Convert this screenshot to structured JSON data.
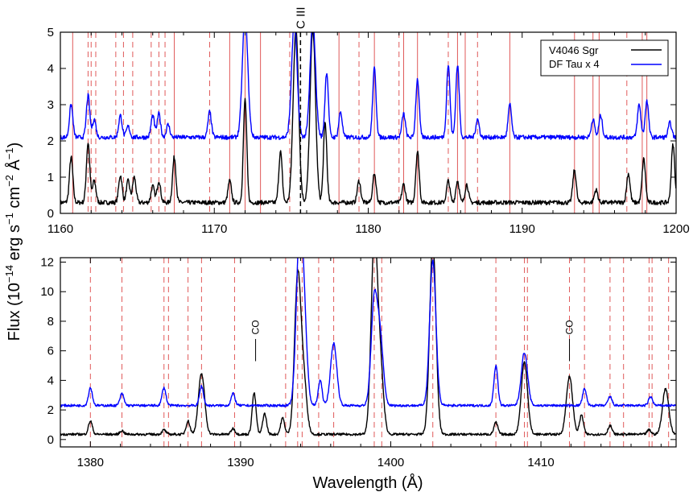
{
  "colors": {
    "black_series": "#000000",
    "blue_series": "#0000ff",
    "reference_lines": "#e05a5a"
  },
  "chart_data": [
    {
      "type": "line",
      "panel": "top",
      "xlim": [
        1160,
        1200
      ],
      "ylim": [
        0,
        5
      ],
      "xticks": [
        1160,
        1170,
        1180,
        1190,
        1200
      ],
      "yticks": [
        0,
        1,
        2,
        3,
        4,
        5
      ],
      "xtick_labels": [
        "1160",
        "1170",
        "1180",
        "1190",
        "1200"
      ],
      "ytick_labels": [
        "0",
        "1",
        "2",
        "3",
        "4",
        "5"
      ],
      "legend_position": "top-right",
      "series": [
        {
          "name": "V4046 Sgr",
          "color": "#000000",
          "baseline": 0.3,
          "peaks": [
            [
              1160.7,
              1.25
            ],
            [
              1161.8,
              1.65
            ],
            [
              1162.2,
              0.6
            ],
            [
              1163.9,
              0.75
            ],
            [
              1164.4,
              0.6
            ],
            [
              1164.8,
              0.7
            ],
            [
              1166.0,
              0.45
            ],
            [
              1166.4,
              0.6
            ],
            [
              1167.4,
              1.25
            ],
            [
              1171.0,
              0.6
            ],
            [
              1172.0,
              2.85
            ],
            [
              1174.3,
              1.4
            ],
            [
              1175.3,
              4.8
            ],
            [
              1176.4,
              4.8
            ],
            [
              1177.2,
              2.2
            ],
            [
              1179.4,
              0.6
            ],
            [
              1180.4,
              0.8
            ],
            [
              1182.3,
              0.5
            ],
            [
              1183.2,
              1.4
            ],
            [
              1185.2,
              0.6
            ],
            [
              1185.8,
              0.6
            ],
            [
              1186.4,
              0.5
            ],
            [
              1193.4,
              0.9
            ],
            [
              1194.8,
              0.35
            ],
            [
              1196.9,
              0.8
            ],
            [
              1197.9,
              1.2
            ],
            [
              1199.8,
              1.6
            ]
          ]
        },
        {
          "name": "DF Tau x 4",
          "color": "#0000ff",
          "baseline": 2.1,
          "peaks": [
            [
              1160.7,
              0.9
            ],
            [
              1161.8,
              1.15
            ],
            [
              1162.2,
              0.5
            ],
            [
              1163.9,
              0.6
            ],
            [
              1164.4,
              0.3
            ],
            [
              1166.0,
              0.6
            ],
            [
              1166.4,
              0.65
            ],
            [
              1167.0,
              0.35
            ],
            [
              1169.7,
              0.7
            ],
            [
              1172.0,
              3.4
            ],
            [
              1175.2,
              3.2
            ],
            [
              1176.4,
              3.2
            ],
            [
              1177.3,
              1.8
            ],
            [
              1178.2,
              0.7
            ],
            [
              1180.4,
              1.9
            ],
            [
              1182.3,
              0.65
            ],
            [
              1183.2,
              1.6
            ],
            [
              1185.2,
              2.0
            ],
            [
              1185.8,
              2.0
            ],
            [
              1187.1,
              0.5
            ],
            [
              1189.2,
              0.9
            ],
            [
              1194.6,
              0.5
            ],
            [
              1195.1,
              0.6
            ],
            [
              1197.6,
              0.9
            ],
            [
              1198.1,
              1.0
            ],
            [
              1199.6,
              0.4
            ]
          ]
        }
      ],
      "reference_lines_solid": [
        1160.8,
        1167.4,
        1171.0,
        1172.0,
        1173.0,
        1178.1,
        1180.4,
        1182.3,
        1183.2,
        1185.8,
        1186.3,
        1189.2,
        1193.4,
        1194.6,
        1195.0,
        1197.8,
        1198.1
      ],
      "reference_lines_dashed": [
        1161.8,
        1162.0,
        1162.3,
        1163.6,
        1164.1,
        1164.7,
        1165.9,
        1166.4,
        1166.8,
        1169.7,
        1174.9,
        1179.4,
        1182.0,
        1185.2,
        1187.1,
        1196.8
      ],
      "annotation": {
        "label": "C III",
        "x": 1175.6
      }
    },
    {
      "type": "line",
      "panel": "bottom",
      "xlim": [
        1378,
        1419
      ],
      "ylim": [
        -0.5,
        12.3
      ],
      "xticks": [
        1380,
        1390,
        1400,
        1410
      ],
      "yticks": [
        0,
        2,
        4,
        6,
        8,
        10,
        12
      ],
      "xtick_labels": [
        "1380",
        "1390",
        "1400",
        "1410"
      ],
      "ytick_labels": [
        "0",
        "2",
        "4",
        "6",
        "8",
        "10",
        "12"
      ],
      "xlabel": "Wavelength (Å)",
      "series": [
        {
          "name": "V4046 Sgr",
          "color": "#000000",
          "baseline": 0.35,
          "peaks": [
            [
              1380.0,
              0.9
            ],
            [
              1382.1,
              0.25
            ],
            [
              1384.9,
              0.3
            ],
            [
              1386.5,
              0.9
            ],
            [
              1387.4,
              4.1
            ],
            [
              1389.5,
              0.4
            ],
            [
              1390.9,
              2.8
            ],
            [
              1391.6,
              1.4
            ],
            [
              1392.8,
              1.1
            ],
            [
              1393.8,
              10.5
            ],
            [
              1394.2,
              3.5
            ],
            [
              1398.9,
              13.0
            ],
            [
              1399.3,
              4.5
            ],
            [
              1402.8,
              13.0
            ],
            [
              1407.0,
              0.8
            ],
            [
              1408.9,
              4.9
            ],
            [
              1411.9,
              3.9
            ],
            [
              1412.7,
              1.3
            ],
            [
              1414.6,
              0.6
            ],
            [
              1417.2,
              0.3
            ],
            [
              1418.3,
              3.1
            ]
          ]
        },
        {
          "name": "DF Tau x 4",
          "color": "#0000ff",
          "baseline": 2.3,
          "peaks": [
            [
              1380.0,
              1.2
            ],
            [
              1382.1,
              0.8
            ],
            [
              1384.9,
              1.2
            ],
            [
              1387.4,
              1.3
            ],
            [
              1389.5,
              0.8
            ],
            [
              1393.9,
              10.0
            ],
            [
              1394.2,
              6.0
            ],
            [
              1395.3,
              1.7
            ],
            [
              1396.2,
              4.2
            ],
            [
              1398.9,
              7.0
            ],
            [
              1399.3,
              4.3
            ],
            [
              1402.8,
              9.8
            ],
            [
              1407.0,
              2.7
            ],
            [
              1408.9,
              3.6
            ],
            [
              1412.9,
              1.1
            ],
            [
              1414.6,
              0.6
            ],
            [
              1417.3,
              0.6
            ]
          ]
        }
      ],
      "reference_lines_dashed": [
        1380.0,
        1382.1,
        1384.9,
        1385.2,
        1386.5,
        1387.4,
        1389.6,
        1393.0,
        1393.8,
        1394.1,
        1395.2,
        1396.2,
        1398.9,
        1399.4,
        1402.8,
        1407.0,
        1408.9,
        1409.1,
        1411.9,
        1412.9,
        1414.6,
        1415.5,
        1417.2,
        1417.4,
        1418.5
      ],
      "annotations": [
        {
          "label": "CO",
          "x": 1391.0
        },
        {
          "label": "CO",
          "x": 1411.9
        }
      ]
    }
  ],
  "ylabel_text": "Flux (10",
  "ylabel_exp1": "−14",
  "ylabel_mid": " erg s",
  "ylabel_exp2": "−1",
  "ylabel_mid2": " cm",
  "ylabel_exp3": "−2",
  "ylabel_mid3": " Å",
  "ylabel_exp4": "−1",
  "ylabel_end": ")",
  "legend": {
    "entries": [
      "V4046 Sgr",
      "DF Tau x 4"
    ]
  }
}
